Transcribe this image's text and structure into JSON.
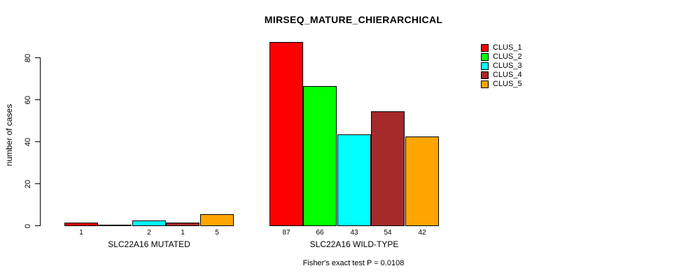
{
  "chart_data": {
    "type": "bar",
    "title": "MIRSEQ_MATURE_CHIERARCHICAL",
    "ylabel": "number of cases",
    "xlabel": "",
    "ylim": [
      0,
      87
    ],
    "yticks": [
      0,
      20,
      40,
      60,
      80
    ],
    "grid": false,
    "series_names": [
      "CLUS_1",
      "CLUS_2",
      "CLUS_3",
      "CLUS_4",
      "CLUS_5"
    ],
    "colors": [
      "#FF0000",
      "#00FF00",
      "#00FFFF",
      "#A52A2A",
      "#FFA500"
    ],
    "groups": [
      {
        "label": "SLC22A16 MUTATED",
        "values": [
          1,
          0,
          2,
          1,
          5
        ]
      },
      {
        "label": "SLC22A16 WILD-TYPE",
        "values": [
          87,
          66,
          43,
          54,
          42
        ]
      }
    ],
    "legend": {
      "position": "top-right",
      "entries": [
        {
          "label": "CLUS_1",
          "color": "#FF0000"
        },
        {
          "label": "CLUS_2",
          "color": "#00FF00"
        },
        {
          "label": "CLUS_3",
          "color": "#00FFFF"
        },
        {
          "label": "CLUS_4",
          "color": "#A52A2A"
        },
        {
          "label": "CLUS_5",
          "color": "#FFA500"
        }
      ]
    },
    "annotation": "Fisher's exact test P = 0.0108"
  }
}
